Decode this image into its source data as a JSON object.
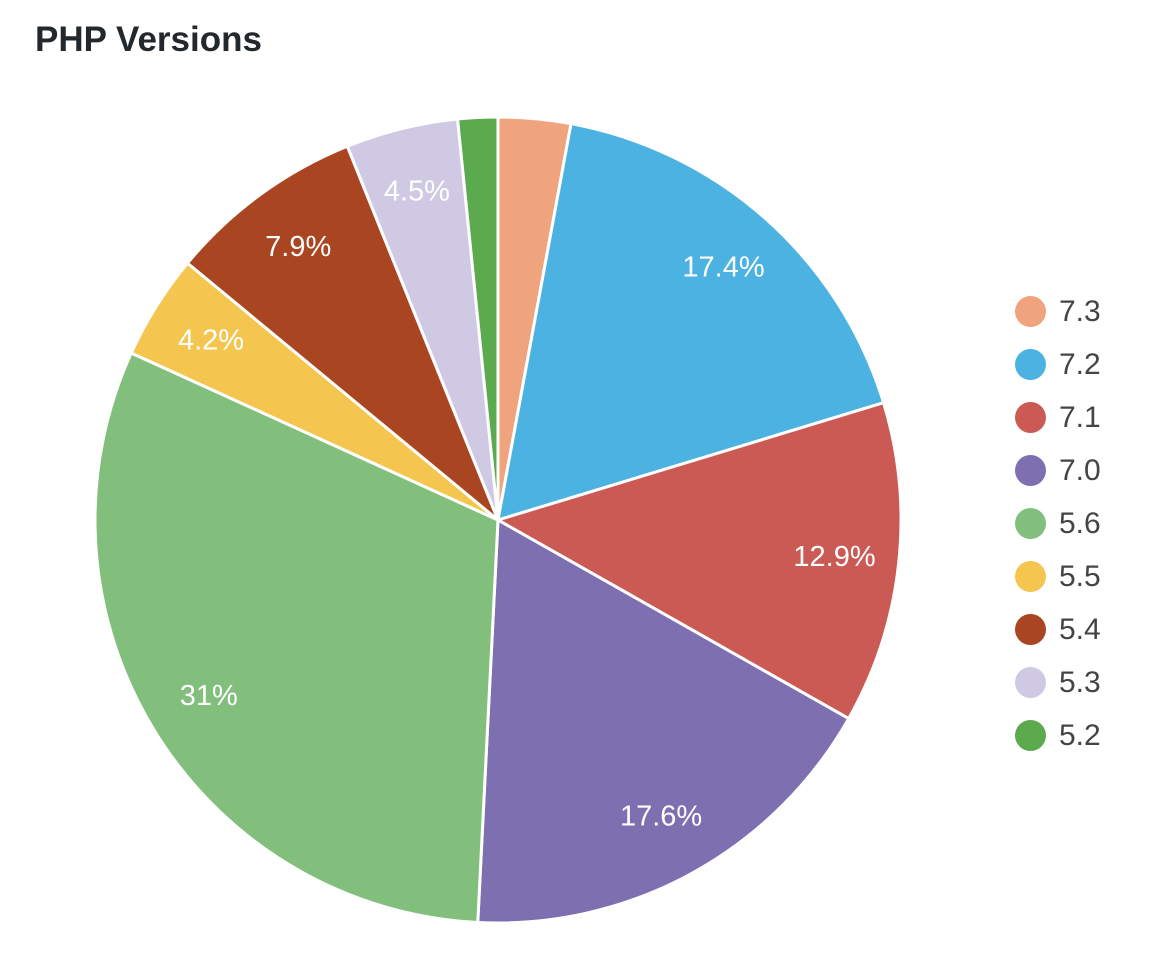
{
  "chart_data": {
    "type": "pie",
    "title": "PHP Versions",
    "legend_position": "right",
    "start_angle_deg": 0,
    "direction": "clockwise",
    "slice_label_color": "#ffffff",
    "slice_border_color": "#ffffff",
    "title_color": "#23282d",
    "legend_text_color": "#444444",
    "slices": [
      {
        "label": "7.3",
        "value": 2.9,
        "pct_label": "",
        "color": "#EFA47E"
      },
      {
        "label": "7.2",
        "value": 17.4,
        "pct_label": "17.4%",
        "color": "#4CB2E2"
      },
      {
        "label": "7.1",
        "value": 12.9,
        "pct_label": "12.9%",
        "color": "#CB5A54"
      },
      {
        "label": "7.0",
        "value": 17.6,
        "pct_label": "17.6%",
        "color": "#7E6FB1"
      },
      {
        "label": "5.6",
        "value": 31,
        "pct_label": "31%",
        "color": "#82BF7C"
      },
      {
        "label": "5.5",
        "value": 4.2,
        "pct_label": "4.2%",
        "color": "#F5C64F"
      },
      {
        "label": "5.4",
        "value": 7.9,
        "pct_label": "7.9%",
        "color": "#AA4522"
      },
      {
        "label": "5.3",
        "value": 4.5,
        "pct_label": "4.5%",
        "color": "#CFC9E4"
      },
      {
        "label": "5.2",
        "value": 1.6,
        "pct_label": "",
        "color": "#5BAA4E"
      }
    ]
  }
}
